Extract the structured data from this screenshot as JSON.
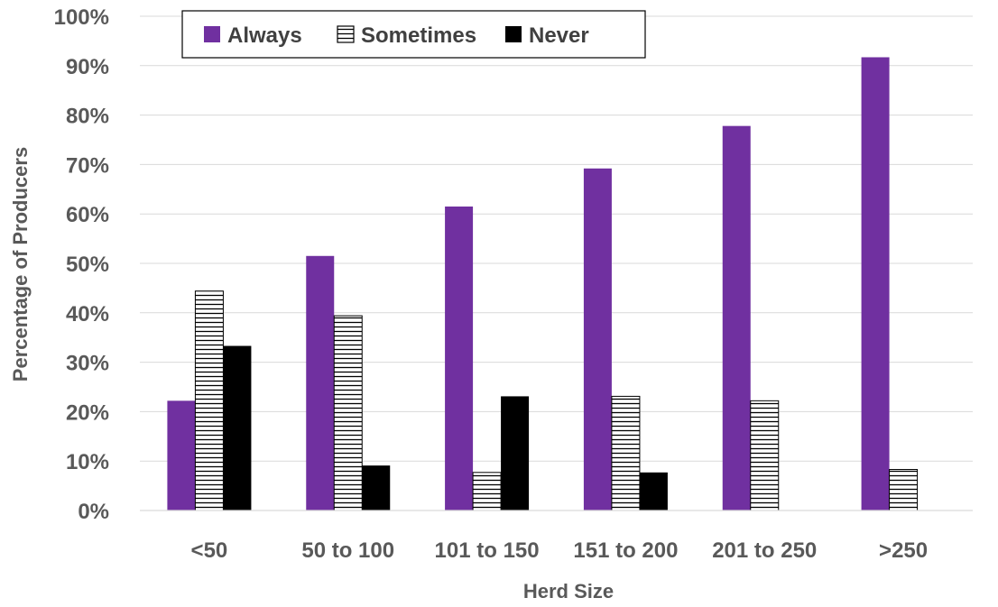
{
  "chart_data": {
    "type": "bar",
    "title": "",
    "xlabel": "Herd Size",
    "ylabel": "Percentage of Producers",
    "categories": [
      "<50",
      "50 to 100",
      "101 to 150",
      "151 to 200",
      "201 to 250",
      ">250"
    ],
    "series": [
      {
        "name": "Always",
        "values": [
          22.2,
          51.5,
          61.5,
          69.2,
          77.8,
          91.7
        ],
        "color": "#7030a0",
        "pattern": "solid"
      },
      {
        "name": "Sometimes",
        "values": [
          44.4,
          39.4,
          7.7,
          23.1,
          22.2,
          8.3
        ],
        "color": "#000000",
        "pattern": "horizontal-lines"
      },
      {
        "name": "Never",
        "values": [
          33.3,
          9.1,
          23.1,
          7.7,
          0,
          0
        ],
        "color": "#000000",
        "pattern": "solid"
      }
    ],
    "ylim": [
      0,
      100
    ],
    "yticks": [
      "0%",
      "10%",
      "20%",
      "30%",
      "40%",
      "50%",
      "60%",
      "70%",
      "80%",
      "90%",
      "100%"
    ],
    "grid": true,
    "legend_position": "top"
  }
}
